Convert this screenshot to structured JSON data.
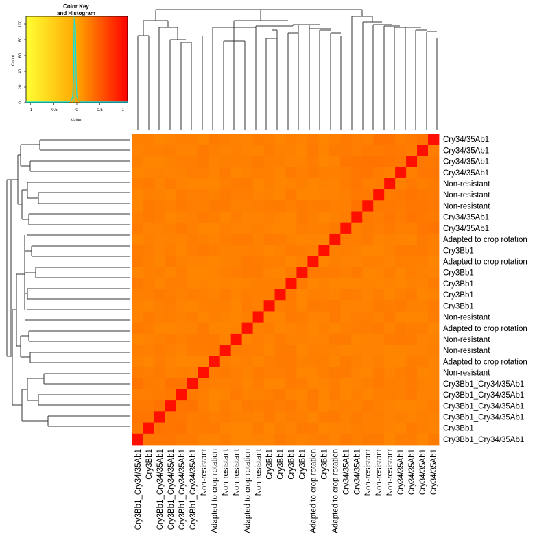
{
  "chart_data": {
    "type": "heatmap",
    "title": "",
    "color_key": {
      "title_line1": "Color Key",
      "title_line2": "and Histogram",
      "xlabel": "Value",
      "ylabel": "Count",
      "x_ticks": [
        "-1",
        "-0.5",
        "0",
        "0.5",
        "1"
      ],
      "y_ticks": [
        "0",
        "20",
        "40",
        "60",
        "80",
        "100"
      ],
      "value_range": [
        -1.1,
        1.1
      ],
      "colors": [
        "#ffff33",
        "#ffa500",
        "#ff0000"
      ],
      "histogram_color": "#00e5ee"
    },
    "row_labels": [
      "Cry34/35Ab1",
      "Cry34/35Ab1",
      "Cry34/35Ab1",
      "Cry34/35Ab1",
      "Non-resistant",
      "Non-resistant",
      "Non-resistant",
      "Cry34/35Ab1",
      "Cry34/35Ab1",
      "Adapted to crop rotation",
      "Cry3Bb1",
      "Adapted to crop rotation",
      "Cry3Bb1",
      "Cry3Bb1",
      "Cry3Bb1",
      "Cry3Bb1",
      "Non-resistant",
      "Adapted to crop rotation",
      "Non-resistant",
      "Non-resistant",
      "Adapted to crop rotation",
      "Non-resistant",
      "Cry3Bb1_Cry34/35Ab1",
      "Cry3Bb1_Cry34/35Ab1",
      "Cry3Bb1_Cry34/35Ab1",
      "Cry3Bb1_Cry34/35Ab1",
      "Cry3Bb1",
      "Cry3Bb1_Cry34/35Ab1"
    ],
    "col_labels": [
      "Cry3Bb1_Cry34/35Ab1",
      "Cry3Bb1",
      "Cry3Bb1_Cry34/35Ab1",
      "Cry3Bb1_Cry34/35Ab1",
      "Cry3Bb1_Cry34/35Ab1",
      "Cry3Bb1_Cry34/35Ab1",
      "Non-resistant",
      "Adapted to crop rotation",
      "Non-resistant",
      "Non-resistant",
      "Adapted to crop rotation",
      "Non-resistant",
      "Cry3Bb1",
      "Cry3Bb1",
      "Cry3Bb1",
      "Cry3Bb1",
      "Adapted to crop rotation",
      "Cry3Bb1",
      "Adapted to crop rotation",
      "Cry34/35Ab1",
      "Cry34/35Ab1",
      "Non-resistant",
      "Non-resistant",
      "Non-resistant",
      "Cry34/35Ab1",
      "Cry34/35Ab1",
      "Cry34/35Ab1",
      "Cry34/35Ab1"
    ],
    "diagonal_value": 1.0,
    "off_diagonal_typical": 0.25,
    "grid": false
  }
}
